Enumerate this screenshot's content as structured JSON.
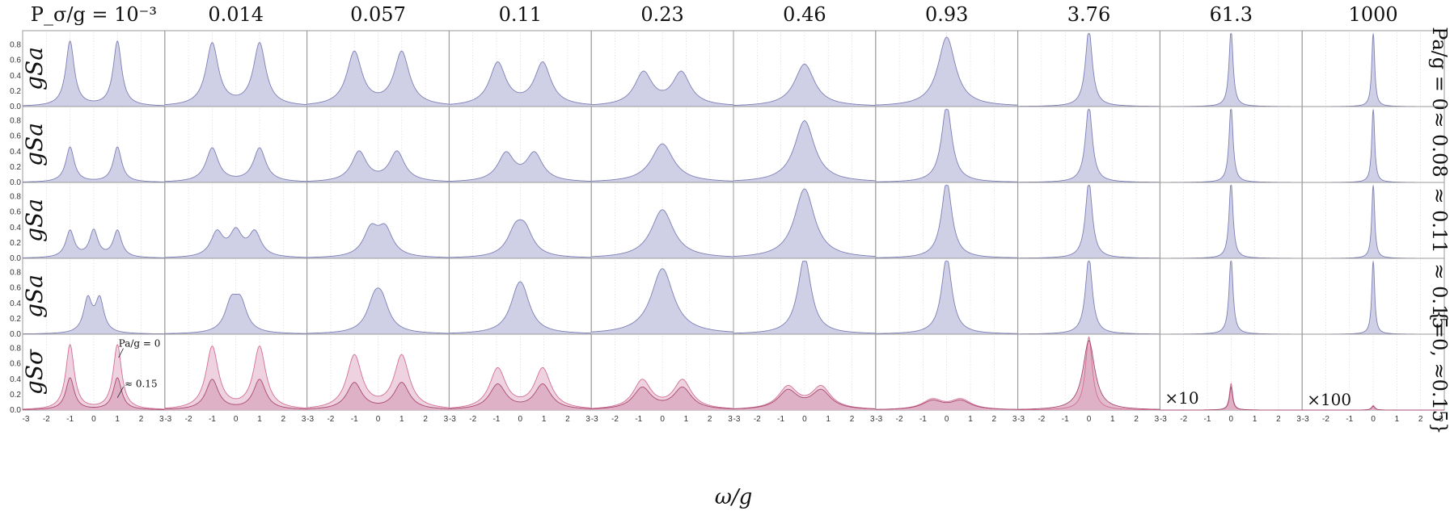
{
  "figure": {
    "column_header_prefix": "P_σ/g =",
    "column_values": [
      "10⁻³",
      "0.014",
      "0.057",
      "0.11",
      "0.23",
      "0.46",
      "0.93",
      "3.76",
      "61.3",
      "1000"
    ],
    "row_labels": [
      "gSa",
      "gSa",
      "gSa",
      "gSa",
      "gSσ"
    ],
    "side_labels": [
      "Pa/g = 0",
      "≈ 0.08",
      "≈ 0.11",
      "≈ 0.15",
      "{=0, ≈0.15}"
    ],
    "xlabel": "ω/g",
    "x_tick_labels": [
      "-3",
      "-2",
      "-1",
      "0",
      "1",
      "2",
      "3"
    ],
    "y_tick_labels": [
      "0.0",
      "0.2",
      "0.4",
      "0.6",
      "0.8"
    ],
    "annotation_pa0": "Pa/g = 0",
    "annotation_015": "≈ 0.15",
    "scale_annotations": {
      "col_8": "×10",
      "col_9": "×100"
    },
    "colors": {
      "sa_fill": "#cfd0e6",
      "sa_line": "#7d7fb6",
      "ss0_fill": "#edd0dd",
      "ss0_line": "#d26f93",
      "ss15_fill": "#d9a6bd",
      "ss15_line": "#a84a70",
      "frame": "#9a9a9a"
    }
  },
  "chart_data": {
    "type": "area",
    "title": "",
    "xlabel": "ω/g",
    "ylabel": "gS",
    "xlim": [
      -3,
      3
    ],
    "ylim": [
      0,
      0.9
    ],
    "grid": true,
    "columns_P_sigma_over_g": [
      0.001,
      0.014,
      0.057,
      0.11,
      0.23,
      0.46,
      0.93,
      3.76,
      61.3,
      1000
    ],
    "rows": [
      {
        "name": "gSa",
        "Pa_over_g": "0",
        "panels": [
          {
            "peaks_omega": [
              -1,
              1
            ],
            "peak_height": 0.85,
            "center_dip": 0.0
          },
          {
            "peaks_omega": [
              -1,
              1
            ],
            "peak_height": 0.83,
            "center_dip": 0.05
          },
          {
            "peaks_omega": [
              -1,
              1
            ],
            "peak_height": 0.72,
            "center_dip": 0.2
          },
          {
            "peaks_omega": [
              -0.95,
              0.95
            ],
            "peak_height": 0.58,
            "center_dip": 0.32
          },
          {
            "peaks_omega": [
              -0.8,
              0.8
            ],
            "peak_height": 0.46,
            "center_dip": 0.35
          },
          {
            "peaks_omega": [
              0
            ],
            "peak_height": 0.55
          },
          {
            "peaks_omega": [
              0
            ],
            "peak_height": 0.9
          },
          {
            "peaks_omega": [
              0
            ],
            "peak_height": 1.0
          },
          {
            "peaks_omega": [
              0
            ],
            "peak_height": 1.0
          },
          {
            "peaks_omega": [
              0
            ],
            "peak_height": 1.0
          }
        ]
      },
      {
        "name": "gSa",
        "Pa_over_g": "≈ 0.08",
        "panels": [
          {
            "peaks_omega": [
              -1,
              1
            ],
            "peak_height": 0.46,
            "center_dip": 0.17
          },
          {
            "peaks_omega": [
              -1,
              1
            ],
            "peak_height": 0.45,
            "center_dip": 0.22
          },
          {
            "peaks_omega": [
              -0.8,
              0.8
            ],
            "peak_height": 0.41,
            "center_dip": 0.32
          },
          {
            "peaks_omega": [
              -0.6,
              0.6
            ],
            "peak_height": 0.4,
            "center_dip": 0.37
          },
          {
            "peaks_omega": [
              0
            ],
            "peak_height": 0.5
          },
          {
            "peaks_omega": [
              0
            ],
            "peak_height": 0.8
          },
          {
            "peaks_omega": [
              0
            ],
            "peak_height": 1.0
          },
          {
            "peaks_omega": [
              0
            ],
            "peak_height": 1.0
          },
          {
            "peaks_omega": [
              0
            ],
            "peak_height": 1.0
          },
          {
            "peaks_omega": [
              0
            ],
            "peak_height": 1.0
          }
        ]
      },
      {
        "name": "gSa",
        "Pa_over_g": "≈ 0.11",
        "panels": [
          {
            "peaks_omega": [
              -1,
              0,
              1
            ],
            "peak_height": 0.38
          },
          {
            "peaks_omega": [
              -0.8,
              0,
              0.8
            ],
            "peak_height": 0.4
          },
          {
            "peaks_omega": [
              -0.3,
              0.3
            ],
            "peak_height": 0.45
          },
          {
            "peaks_omega": [
              -0.2,
              0.2
            ],
            "peak_height": 0.5
          },
          {
            "peaks_omega": [
              0
            ],
            "peak_height": 0.63
          },
          {
            "peaks_omega": [
              0
            ],
            "peak_height": 0.9
          },
          {
            "peaks_omega": [
              0
            ],
            "peak_height": 1.0
          },
          {
            "peaks_omega": [
              0
            ],
            "peak_height": 1.0
          },
          {
            "peaks_omega": [
              0
            ],
            "peak_height": 1.0
          },
          {
            "peaks_omega": [
              0
            ],
            "peak_height": 1.0
          }
        ]
      },
      {
        "name": "gSa",
        "Pa_over_g": "≈ 0.15",
        "panels": [
          {
            "peaks_omega": [
              -0.25,
              0.25
            ],
            "peak_height": 0.5
          },
          {
            "peaks_omega": [
              -0.2,
              0.2
            ],
            "peak_height": 0.52
          },
          {
            "peaks_omega": [
              -0.15,
              0.15
            ],
            "peak_height": 0.6
          },
          {
            "peaks_omega": [
              -0.1,
              0.1
            ],
            "peak_height": 0.68
          },
          {
            "peaks_omega": [
              0
            ],
            "peak_height": 0.85
          },
          {
            "peaks_omega": [
              0
            ],
            "peak_height": 1.0
          },
          {
            "peaks_omega": [
              0
            ],
            "peak_height": 1.0
          },
          {
            "peaks_omega": [
              0
            ],
            "peak_height": 1.0
          },
          {
            "peaks_omega": [
              0
            ],
            "peak_height": 1.0
          },
          {
            "peaks_omega": [
              0
            ],
            "peak_height": 1.0
          }
        ]
      },
      {
        "name": "gSσ",
        "Pa_over_g": "{=0, ≈0.15}",
        "series": [
          {
            "name": "Pa/g = 0",
            "panels": [
              {
                "peaks_omega": [
                  -1,
                  1
                ],
                "peak_height": 0.85
              },
              {
                "peaks_omega": [
                  -1,
                  1
                ],
                "peak_height": 0.83
              },
              {
                "peaks_omega": [
                  -1,
                  1
                ],
                "peak_height": 0.72
              },
              {
                "peaks_omega": [
                  -0.95,
                  0.95
                ],
                "peak_height": 0.55
              },
              {
                "peaks_omega": [
                  -0.85,
                  0.85
                ],
                "peak_height": 0.4
              },
              {
                "peaks_omega": [
                  -0.7,
                  0.7
                ],
                "peak_height": 0.32
              },
              {
                "peaks_omega": [
                  -0.6,
                  0.6
                ],
                "peak_height": 0.15
              },
              {
                "peaks_omega": [
                  0
                ],
                "peak_height": 0.95
              },
              {
                "peaks_omega": [
                  0
                ],
                "peak_height": 0.35
              },
              {
                "peaks_omega": [
                  0
                ],
                "peak_height": 0.06
              }
            ]
          },
          {
            "name": "≈ 0.15",
            "panels": [
              {
                "peaks_omega": [
                  -1,
                  1
                ],
                "peak_height": 0.42
              },
              {
                "peaks_omega": [
                  -1,
                  1
                ],
                "peak_height": 0.4
              },
              {
                "peaks_omega": [
                  -1,
                  1
                ],
                "peak_height": 0.36
              },
              {
                "peaks_omega": [
                  -0.95,
                  0.95
                ],
                "peak_height": 0.34
              },
              {
                "peaks_omega": [
                  -0.85,
                  0.85
                ],
                "peak_height": 0.3
              },
              {
                "peaks_omega": [
                  -0.7,
                  0.7
                ],
                "peak_height": 0.27
              },
              {
                "peaks_omega": [
                  -0.6,
                  0.6
                ],
                "peak_height": 0.13
              },
              {
                "peaks_omega": [
                  0
                ],
                "peak_height": 0.9
              },
              {
                "peaks_omega": [
                  0
                ],
                "peak_height": 0.3
              },
              {
                "peaks_omega": [
                  0
                ],
                "peak_height": 0.05
              }
            ]
          }
        ]
      }
    ]
  }
}
